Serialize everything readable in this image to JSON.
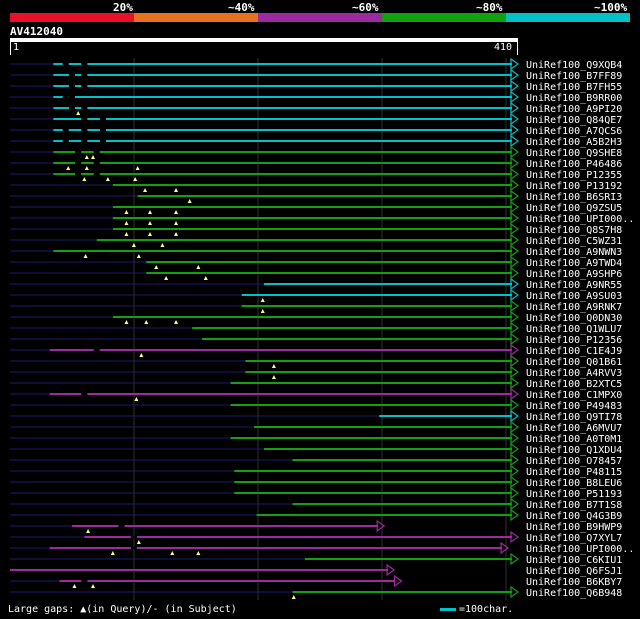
{
  "legend": {
    "labels": [
      "20%",
      "~40%",
      "~60%",
      "~80%",
      "~100%"
    ],
    "colors": [
      "#e8102a",
      "#e87020",
      "#9c2aa0",
      "#10a010",
      "#00c0c8"
    ]
  },
  "query": {
    "name": "AV412040",
    "start_label": "1",
    "end_label": "410",
    "length": 410
  },
  "footer": {
    "gaps_text": "Large gaps: ▲(in Query)/- (in Subject)",
    "scale_text": "=100char."
  },
  "hits": [
    {
      "name": "UniRef100_Q9XQB4",
      "color": "cyan",
      "sbjStart": 35,
      "alnStart": 35,
      "gaps": [
        45,
        60
      ],
      "arrows": []
    },
    {
      "name": "UniRef100_B7FF89",
      "color": "cyan",
      "sbjStart": 35,
      "alnStart": 35,
      "gaps": [
        50,
        60
      ],
      "arrows": []
    },
    {
      "name": "UniRef100_B7FH55",
      "color": "cyan",
      "sbjStart": 35,
      "alnStart": 35,
      "gaps": [
        50,
        60
      ],
      "arrows": []
    },
    {
      "name": "UniRef100_B9RR00",
      "color": "cyan",
      "sbjStart": 35,
      "alnStart": 35,
      "gaps": [
        45,
        50
      ],
      "arrows": []
    },
    {
      "name": "UniRef100_A9PI20",
      "color": "cyan",
      "sbjStart": 35,
      "alnStart": 35,
      "gaps": [
        50,
        60
      ],
      "arrows": [
        55
      ]
    },
    {
      "name": "UniRef100_Q84QE7",
      "color": "cyan",
      "sbjStart": 35,
      "alnStart": 35,
      "gaps": [
        60,
        75
      ],
      "arrows": []
    },
    {
      "name": "UniRef100_A7QCS6",
      "color": "cyan",
      "sbjStart": 35,
      "alnStart": 35,
      "gaps": [
        45,
        60,
        75
      ],
      "arrows": []
    },
    {
      "name": "UniRef100_A5B2H3",
      "color": "cyan",
      "sbjStart": 35,
      "alnStart": 35,
      "gaps": [
        45,
        60,
        75
      ],
      "arrows": []
    },
    {
      "name": "UniRef100_Q9SHE8",
      "color": "green",
      "sbjStart": 35,
      "alnStart": 35,
      "gaps": [
        55,
        70
      ],
      "arrows": [
        62,
        67
      ]
    },
    {
      "name": "UniRef100_P46486",
      "color": "green",
      "sbjStart": 35,
      "alnStart": 35,
      "gaps": [
        55,
        70
      ],
      "arrows": [
        47,
        62,
        103
      ]
    },
    {
      "name": "UniRef100_P12355",
      "color": "green",
      "sbjStart": 35,
      "alnStart": 35,
      "gaps": [
        55,
        70
      ],
      "arrows": [
        60,
        79,
        101
      ]
    },
    {
      "name": "UniRef100_P13192",
      "color": "green",
      "sbjStart": 0,
      "alnStart": 83,
      "gaps": [],
      "arrows": [
        109,
        134
      ]
    },
    {
      "name": "UniRef100_B6SRI3",
      "color": "green",
      "sbjStart": 0,
      "alnStart": 103,
      "gaps": [],
      "arrows": [
        145
      ]
    },
    {
      "name": "UniRef100_Q9ZSU5",
      "color": "green",
      "sbjStart": 0,
      "alnStart": 83,
      "gaps": [],
      "arrows": [
        94,
        113,
        134
      ]
    },
    {
      "name": "UniRef100_UPI000..",
      "color": "green",
      "sbjStart": 0,
      "alnStart": 83,
      "gaps": [],
      "arrows": [
        94,
        113,
        134
      ]
    },
    {
      "name": "UniRef100_Q8S7H8",
      "color": "green",
      "sbjStart": 0,
      "alnStart": 83,
      "gaps": [],
      "arrows": [
        94,
        113,
        134
      ]
    },
    {
      "name": "UniRef100_C5WZ31",
      "color": "green",
      "sbjStart": 0,
      "alnStart": 70,
      "gaps": [],
      "arrows": [
        100,
        123
      ]
    },
    {
      "name": "UniRef100_A9NWN3",
      "color": "green",
      "sbjStart": 0,
      "alnStart": 35,
      "gaps": [],
      "arrows": [
        61,
        104
      ]
    },
    {
      "name": "UniRef100_A9TWD4",
      "color": "green",
      "sbjStart": 0,
      "alnStart": 110,
      "gaps": [],
      "arrows": [
        118,
        152
      ]
    },
    {
      "name": "UniRef100_A9SHP6",
      "color": "green",
      "sbjStart": 0,
      "alnStart": 110,
      "gaps": [],
      "arrows": [
        126,
        158
      ]
    },
    {
      "name": "UniRef100_A9NR55",
      "color": "cyan",
      "sbjStart": 0,
      "alnStart": 205,
      "gaps": [],
      "arrows": []
    },
    {
      "name": "UniRef100_A9SU03",
      "color": "cyan",
      "sbjStart": 0,
      "alnStart": 187,
      "gaps": [],
      "arrows": [
        204
      ]
    },
    {
      "name": "UniRef100_A9RNK7",
      "color": "green",
      "sbjStart": 0,
      "alnStart": 187,
      "gaps": [],
      "arrows": [
        204
      ]
    },
    {
      "name": "UniRef100_Q0DN30",
      "color": "green",
      "sbjStart": 0,
      "alnStart": 83,
      "gaps": [],
      "arrows": [
        94,
        110,
        134
      ]
    },
    {
      "name": "UniRef100_Q1WLU7",
      "color": "green",
      "sbjStart": 0,
      "alnStart": 147,
      "gaps": [],
      "arrows": []
    },
    {
      "name": "UniRef100_P12356",
      "color": "green",
      "sbjStart": 0,
      "alnStart": 155,
      "gaps": [],
      "arrows": []
    },
    {
      "name": "UniRef100_C1E4J9",
      "color": "purple",
      "sbjStart": 0,
      "alnStart": 32,
      "gaps": [
        70
      ],
      "arrows": [
        106
      ]
    },
    {
      "name": "UniRef100_Q01B61",
      "color": "green",
      "sbjStart": 0,
      "alnStart": 190,
      "gaps": [],
      "arrows": [
        213
      ]
    },
    {
      "name": "UniRef100_A4RVV3",
      "color": "green",
      "sbjStart": 0,
      "alnStart": 190,
      "gaps": [],
      "arrows": [
        213
      ]
    },
    {
      "name": "UniRef100_B2XTC5",
      "color": "green",
      "sbjStart": 0,
      "alnStart": 178,
      "gaps": [],
      "arrows": []
    },
    {
      "name": "UniRef100_C1MPX0",
      "color": "purple",
      "sbjStart": 0,
      "alnStart": 32,
      "gaps": [
        60
      ],
      "arrows": [
        102
      ]
    },
    {
      "name": "UniRef100_P49483",
      "color": "green",
      "sbjStart": 0,
      "alnStart": 178,
      "gaps": [],
      "arrows": []
    },
    {
      "name": "UniRef100_Q9TI78",
      "color": "cyan",
      "sbjStart": 0,
      "alnStart": 298,
      "gaps": [],
      "arrows": []
    },
    {
      "name": "UniRef100_A6MVU7",
      "color": "green",
      "sbjStart": 0,
      "alnStart": 197,
      "gaps": [],
      "arrows": []
    },
    {
      "name": "UniRef100_A0T0M1",
      "color": "green",
      "sbjStart": 0,
      "alnStart": 178,
      "gaps": [],
      "arrows": []
    },
    {
      "name": "UniRef100_Q1XDU4",
      "color": "green",
      "sbjStart": 0,
      "alnStart": 205,
      "gaps": [],
      "arrows": []
    },
    {
      "name": "UniRef100_O78457",
      "color": "green",
      "sbjStart": 0,
      "alnStart": 228,
      "gaps": [],
      "arrows": []
    },
    {
      "name": "UniRef100_P48115",
      "color": "green",
      "sbjStart": 0,
      "alnStart": 181,
      "gaps": [],
      "arrows": []
    },
    {
      "name": "UniRef100_B8LEU6",
      "color": "green",
      "sbjStart": 0,
      "alnStart": 181,
      "gaps": [],
      "arrows": []
    },
    {
      "name": "UniRef100_P51193",
      "color": "green",
      "sbjStart": 0,
      "alnStart": 181,
      "gaps": [],
      "arrows": []
    },
    {
      "name": "UniRef100_B7T1S8",
      "color": "green",
      "sbjStart": 0,
      "alnStart": 228,
      "gaps": [],
      "arrows": []
    },
    {
      "name": "UniRef100_Q4G3B9",
      "color": "green",
      "sbjStart": 0,
      "alnStart": 199,
      "gaps": [],
      "arrows": []
    },
    {
      "name": "UniRef100_B9HWP9",
      "color": "purple",
      "sbjStart": 0,
      "alnStart": 50,
      "gaps": [
        90
      ],
      "arrows": [
        63
      ],
      "end": 302
    },
    {
      "name": "UniRef100_Q7XYL7",
      "color": "purple",
      "sbjStart": 0,
      "alnStart": 60,
      "gaps": [
        100
      ],
      "arrows": [
        104
      ],
      "end": 410
    },
    {
      "name": "UniRef100_UPI000..",
      "color": "purple",
      "sbjStart": 0,
      "alnStart": 32,
      "gaps": [
        100
      ],
      "arrows": [
        83,
        131,
        152
      ],
      "end": 402
    },
    {
      "name": "UniRef100_C6KIU1",
      "color": "green",
      "sbjStart": 0,
      "alnStart": 238,
      "gaps": [],
      "arrows": []
    },
    {
      "name": "UniRef100_Q6FSJ1",
      "color": "purple",
      "sbjStart": 0,
      "alnStart": 0,
      "gaps": [],
      "arrows": [],
      "end": 310
    },
    {
      "name": "UniRef100_B6KBY7",
      "color": "purple",
      "sbjStart": 0,
      "alnStart": 40,
      "gaps": [
        60
      ],
      "arrows": [
        52,
        67
      ],
      "end": 316
    },
    {
      "name": "UniRef100_Q6B948",
      "color": "green",
      "sbjStart": 0,
      "alnStart": 228,
      "gaps": [],
      "arrows": [
        229
      ]
    }
  ]
}
